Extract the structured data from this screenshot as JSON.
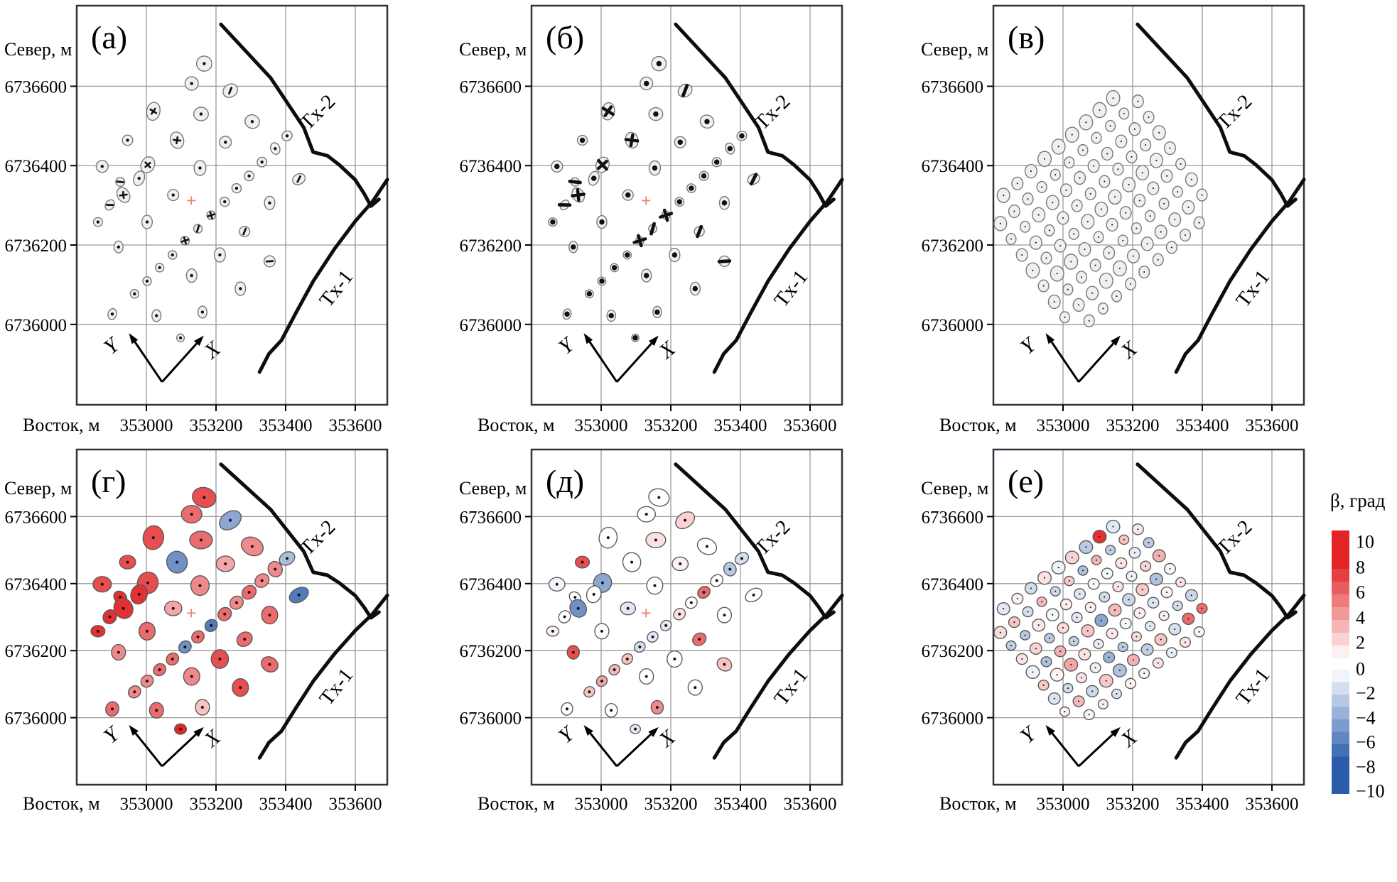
{
  "chart_data": {
    "type": "scatter",
    "description": "Six map panels of polarization-ellipse survey stations with transmitter lines",
    "axis": {
      "north_label": "Север, м",
      "east_label": "Восток, м",
      "x_ticks": [
        "353000",
        "353200",
        "353400",
        "353600"
      ],
      "x_tick_values": [
        353000,
        353200,
        353400,
        353600
      ],
      "y_ticks": [
        "6736600",
        "6736400",
        "6736200",
        "6736000"
      ],
      "y_tick_values": [
        6736600,
        6736400,
        6736200,
        6736000
      ],
      "x_range": [
        352800,
        353692
      ],
      "y_range": [
        6735800,
        6736803
      ],
      "grid": true
    },
    "panels": [
      {
        "id": "a",
        "label": "(а)",
        "type": "sparse",
        "fill": "gray",
        "scale": 1.0,
        "mark_scale": 1.0
      },
      {
        "id": "b",
        "label": "(б)",
        "type": "sparse",
        "fill": "gray",
        "scale": 0.95,
        "mark_scale": 1.7
      },
      {
        "id": "v",
        "label": "(в)",
        "type": "dense",
        "fill": "gray",
        "scale": 1.0,
        "mark_scale": 0.7
      },
      {
        "id": "g",
        "label": "(г)",
        "type": "sparse",
        "fill": "beta_g",
        "scale": 1.55,
        "mark_scale": 0.9
      },
      {
        "id": "d",
        "label": "(д)",
        "type": "sparse",
        "fill": "beta_d",
        "scale": 1.35,
        "mark_scale": 0.9
      },
      {
        "id": "e",
        "label": "(е)",
        "type": "dense",
        "fill": "beta_e",
        "scale": 1.0,
        "mark_scale": 0.7
      }
    ],
    "transmitters": [
      {
        "id": "tx2",
        "label": "Tx-2",
        "label_pos": [
          353505,
          6736523
        ],
        "label_rot": -45,
        "points": [
          [
            353214,
            6736756
          ],
          [
            353357,
            6736621
          ],
          [
            353452,
            6736496
          ],
          [
            353479,
            6736434
          ],
          [
            353520,
            6736425
          ],
          [
            353554,
            6736402
          ],
          [
            353600,
            6736364
          ],
          [
            353625,
            6736330
          ],
          [
            353645,
            6736298
          ],
          [
            353668,
            6736315
          ]
        ]
      },
      {
        "id": "tx1",
        "label": "Tx-1",
        "label_pos": [
          353560,
          6736080
        ],
        "label_rot": -52,
        "points": [
          [
            353325,
            6735880
          ],
          [
            353352,
            6735926
          ],
          [
            353388,
            6735960
          ],
          [
            353430,
            6736030
          ],
          [
            353480,
            6736110
          ],
          [
            353540,
            6736190
          ],
          [
            353600,
            6736260
          ],
          [
            353650,
            6736310
          ],
          [
            353692,
            6736365
          ]
        ]
      }
    ],
    "local_axes": {
      "x_label": "X",
      "y_label": "Y",
      "vertex": [
        353045,
        6735855
      ],
      "y_tip": [
        352950,
        6735978
      ],
      "x_tip": [
        353165,
        6735972
      ],
      "y_label_pos": [
        352912,
        6735932
      ],
      "x_label_pos": [
        353202,
        6735922
      ],
      "label_rot": -40
    },
    "center_mark": {
      "x": 353129,
      "y": 6736312,
      "panels": [
        "a",
        "b",
        "g",
        "d"
      ],
      "color": "#f08273"
    },
    "colorbar": {
      "title": "β, град",
      "ticks": [
        "10",
        "8",
        "6",
        "4",
        "2",
        "0",
        "−2",
        "−4",
        "−6",
        "−8",
        "−10"
      ],
      "tick_values": [
        10,
        8,
        6,
        4,
        2,
        0,
        -2,
        -4,
        -6,
        -8,
        -10
      ],
      "red": "#e32426",
      "blue": "#2a5caa"
    },
    "colors": {
      "station_gray": "#f1f0ee",
      "station_stroke_gray": "#787878",
      "station_stroke_color": "#5a5a5a",
      "grid": "#9a9a9a",
      "box": "#2e323c",
      "line": "#0d0d0d"
    },
    "stations_sparse": {
      "fields": [
        "x",
        "y",
        "rx_m",
        "ry_m",
        "rot_deg",
        "mark",
        "beta_g_deg",
        "beta_d_deg"
      ],
      "mark_legend": {
        "0": "dot",
        "1": "cross",
        "2": "slash"
      },
      "rows": [
        [
          353166,
          6736657,
          22,
          19,
          15,
          0,
          6,
          0
        ],
        [
          353130,
          6736607,
          19,
          17,
          0,
          0,
          5,
          0
        ],
        [
          353241,
          6736589,
          22,
          16,
          -35,
          2,
          -4,
          1.5
        ],
        [
          353020,
          6736537,
          19,
          23,
          10,
          1,
          6,
          0
        ],
        [
          353157,
          6736530,
          21,
          17,
          0,
          0,
          5,
          1
        ],
        [
          353304,
          6736511,
          21,
          17,
          25,
          0,
          4,
          0
        ],
        [
          352946,
          6736464,
          15,
          13,
          0,
          0,
          6,
          6
        ],
        [
          353088,
          6736464,
          19,
          21,
          -15,
          1,
          -5,
          0
        ],
        [
          353227,
          6736459,
          17,
          15,
          0,
          0,
          3,
          0.5
        ],
        [
          353404,
          6736475,
          15,
          12,
          -30,
          0,
          -3,
          -1.5
        ],
        [
          353370,
          6736443,
          13,
          15,
          -20,
          0,
          4,
          -2.5
        ],
        [
          352873,
          6736398,
          17,
          15,
          0,
          0,
          6,
          -0.5
        ],
        [
          353004,
          6736402,
          19,
          21,
          25,
          1,
          6,
          -4
        ],
        [
          353332,
          6736409,
          14,
          12,
          -40,
          0,
          4,
          0
        ],
        [
          353154,
          6736394,
          17,
          19,
          0,
          0,
          4,
          0
        ],
        [
          353295,
          6736374,
          14,
          12,
          -40,
          0,
          5,
          5
        ],
        [
          353438,
          6736366,
          19,
          13,
          -30,
          2,
          -6,
          0
        ],
        [
          352979,
          6736368,
          15,
          19,
          20,
          0,
          7,
          0
        ],
        [
          352925,
          6736359,
          13,
          11,
          40,
          2,
          7,
          0
        ],
        [
          352934,
          6736326,
          17,
          20,
          -30,
          1,
          7,
          -5
        ],
        [
          352895,
          6736301,
          12,
          14,
          35,
          2,
          7,
          0
        ],
        [
          352861,
          6736258,
          13,
          11,
          0,
          0,
          7,
          0.5
        ],
        [
          353077,
          6736326,
          16,
          14,
          0,
          0,
          3,
          -1
        ],
        [
          353002,
          6736258,
          15,
          17,
          0,
          0,
          5,
          0
        ],
        [
          353225,
          6736309,
          13,
          12,
          -40,
          0,
          5,
          1
        ],
        [
          353259,
          6736343,
          13,
          12,
          -40,
          0,
          4,
          0
        ],
        [
          353186,
          6736275,
          12,
          11,
          -40,
          1,
          -6,
          -1
        ],
        [
          353148,
          6736241,
          12,
          11,
          -40,
          2,
          5,
          -1
        ],
        [
          353111,
          6736211,
          12,
          11,
          -40,
          1,
          -5,
          -1.5
        ],
        [
          353075,
          6736175,
          12,
          11,
          -40,
          0,
          5,
          2
        ],
        [
          353038,
          6736143,
          12,
          11,
          -40,
          0,
          5,
          2.5
        ],
        [
          353002,
          6736109,
          12,
          11,
          -40,
          0,
          4,
          3
        ],
        [
          352966,
          6736077,
          12,
          11,
          -40,
          0,
          4,
          2
        ],
        [
          353282,
          6736234,
          15,
          13,
          -35,
          2,
          5,
          5
        ],
        [
          353354,
          6736306,
          15,
          17,
          0,
          0,
          5,
          0
        ],
        [
          353354,
          6736159,
          16,
          14,
          30,
          2,
          5,
          2
        ],
        [
          353211,
          6736175,
          16,
          18,
          0,
          0,
          6,
          0
        ],
        [
          352920,
          6736195,
          13,
          15,
          0,
          0,
          4,
          6
        ],
        [
          353130,
          6736123,
          15,
          17,
          0,
          0,
          4,
          0
        ],
        [
          353270,
          6736090,
          15,
          17,
          0,
          0,
          6,
          0
        ],
        [
          352902,
          6736026,
          12,
          14,
          15,
          0,
          5,
          0
        ],
        [
          353029,
          6736022,
          13,
          15,
          0,
          0,
          5,
          0
        ],
        [
          353161,
          6736031,
          13,
          15,
          0,
          0,
          2,
          4
        ],
        [
          353098,
          6735966,
          11,
          10,
          0,
          0,
          9,
          -1
        ]
      ]
    },
    "stations_dense": {
      "fields": [
        "x",
        "y",
        "r_m",
        "beta_e_deg"
      ],
      "rows": [
        [
          353005,
          6736018,
          14,
          0.5
        ],
        [
          352975,
          6736057,
          17,
          -1.2
        ],
        [
          352944,
          6736097,
          15,
          1.8
        ],
        [
          352913,
          6736136,
          19,
          -0.6
        ],
        [
          352882,
          6736175,
          16,
          0.9
        ],
        [
          352851,
          6736215,
          14,
          -2.2
        ],
        [
          352820,
          6736254,
          18,
          1.2
        ],
        [
          353075,
          6736009,
          15,
          -0.4
        ],
        [
          353045,
          6736049,
          16,
          2.4
        ],
        [
          353014,
          6736088,
          14,
          -1.6
        ],
        [
          352983,
          6736128,
          19,
          0.3
        ],
        [
          352952,
          6736167,
          15,
          -2.8
        ],
        [
          352922,
          6736206,
          17,
          1.5
        ],
        [
          352891,
          6736246,
          14,
          -2.5
        ],
        [
          352860,
          6736285,
          16,
          2.0
        ],
        [
          352829,
          6736325,
          18,
          -1.0
        ],
        [
          353115,
          6736040,
          14,
          0.6
        ],
        [
          353084,
          6736079,
          17,
          -1.8
        ],
        [
          353053,
          6736119,
          15,
          1.0
        ],
        [
          353023,
          6736158,
          19,
          3.0
        ],
        [
          352992,
          6736198,
          16,
          2.6
        ],
        [
          352961,
          6736237,
          14,
          -2.4
        ],
        [
          352930,
          6736276,
          18,
          0.8
        ],
        [
          352899,
          6736316,
          15,
          -1.4
        ],
        [
          352869,
          6736355,
          16,
          0.5
        ],
        [
          353154,
          6736071,
          14,
          -1.2
        ],
        [
          353124,
          6736110,
          19,
          1.8
        ],
        [
          353093,
          6736149,
          15,
          -0.6
        ],
        [
          353062,
          6736189,
          17,
          0.9
        ],
        [
          353031,
          6736228,
          14,
          -2.2
        ],
        [
          353000,
          6736268,
          16,
          1.2
        ],
        [
          352970,
          6736307,
          18,
          -0.4
        ],
        [
          352939,
          6736346,
          14,
          2.4
        ],
        [
          352908,
          6736386,
          17,
          -1.6
        ],
        [
          353194,
          6736102,
          15,
          0.3
        ],
        [
          353163,
          6736141,
          19,
          -2.8
        ],
        [
          353132,
          6736180,
          16,
          -3.5
        ],
        [
          353102,
          6736220,
          14,
          -0.8
        ],
        [
          353071,
          6736259,
          18,
          2.0
        ],
        [
          353040,
          6736299,
          15,
          -1.0
        ],
        [
          353009,
          6736338,
          16,
          0.6
        ],
        [
          352978,
          6736377,
          14,
          -1.8
        ],
        [
          352947,
          6736417,
          19,
          1.0
        ],
        [
          353233,
          6736132,
          15,
          -0.3
        ],
        [
          353202,
          6736172,
          17,
          2.6
        ],
        [
          353172,
          6736211,
          14,
          -2.4
        ],
        [
          353141,
          6736251,
          16,
          0.8
        ],
        [
          353110,
          6736290,
          18,
          -4.0
        ],
        [
          353079,
          6736329,
          15,
          0.5
        ],
        [
          353048,
          6736369,
          16,
          -1.2
        ],
        [
          353018,
          6736408,
          14,
          1.8
        ],
        [
          352987,
          6736448,
          19,
          -0.6
        ],
        [
          353273,
          6736163,
          15,
          0.9
        ],
        [
          353242,
          6736203,
          17,
          -2.2
        ],
        [
          353211,
          6736242,
          14,
          1.2
        ],
        [
          353180,
          6736281,
          16,
          -0.4
        ],
        [
          353149,
          6736321,
          18,
          2.4
        ],
        [
          353119,
          6736360,
          15,
          -1.6
        ],
        [
          353088,
          6736399,
          16,
          0.3
        ],
        [
          353057,
          6736439,
          14,
          -2.8
        ],
        [
          353026,
          6736478,
          19,
          1.5
        ],
        [
          353312,
          6736194,
          15,
          -0.8
        ],
        [
          353281,
          6736233,
          17,
          2.0
        ],
        [
          353250,
          6736273,
          14,
          -1.0
        ],
        [
          353220,
          6736312,
          16,
          0.6
        ],
        [
          353189,
          6736352,
          18,
          -1.8
        ],
        [
          353158,
          6736391,
          15,
          1.0
        ],
        [
          353127,
          6736430,
          16,
          -0.3
        ],
        [
          353096,
          6736470,
          14,
          2.6
        ],
        [
          353066,
          6736509,
          19,
          -2.4
        ],
        [
          353351,
          6736225,
          15,
          0.8
        ],
        [
          353321,
          6736264,
          17,
          -1.4
        ],
        [
          353290,
          6736304,
          14,
          0.5
        ],
        [
          353259,
          6736343,
          16,
          -1.2
        ],
        [
          353228,
          6736382,
          18,
          1.8
        ],
        [
          353197,
          6736422,
          15,
          -0.6
        ],
        [
          353167,
          6736461,
          16,
          0.9
        ],
        [
          353136,
          6736500,
          14,
          -2.2
        ],
        [
          353105,
          6736540,
          19,
          7.0
        ],
        [
          353391,
          6736256,
          15,
          -0.4
        ],
        [
          353360,
          6736295,
          17,
          5.0
        ],
        [
          353329,
          6736334,
          14,
          -1.6
        ],
        [
          353298,
          6736374,
          16,
          0.3
        ],
        [
          353268,
          6736413,
          18,
          -2.8
        ],
        [
          353237,
          6736452,
          15,
          1.5
        ],
        [
          353206,
          6736492,
          16,
          -0.8
        ],
        [
          353175,
          6736531,
          14,
          2.0
        ],
        [
          353144,
          6736570,
          19,
          -1.0
        ],
        [
          353399,
          6736326,
          15,
          5.0
        ],
        [
          353369,
          6736365,
          17,
          -1.8
        ],
        [
          353338,
          6736404,
          14,
          1.0
        ],
        [
          353307,
          6736444,
          16,
          -0.3
        ],
        [
          353276,
          6736483,
          18,
          2.6
        ],
        [
          353246,
          6736522,
          15,
          -2.4
        ],
        [
          353215,
          6736562,
          16,
          0.8
        ]
      ]
    }
  }
}
